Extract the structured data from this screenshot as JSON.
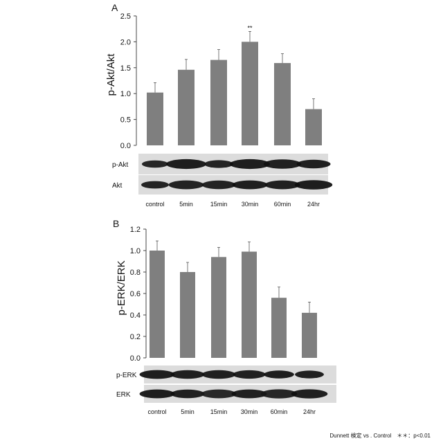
{
  "chart_data": [
    {
      "panel_label": "A",
      "type": "bar",
      "categories": [
        "control",
        "5min",
        "15min",
        "30min",
        "60min",
        "24hr"
      ],
      "values": [
        1.02,
        1.46,
        1.65,
        2.0,
        1.59,
        0.7
      ],
      "errors": [
        0.19,
        0.2,
        0.2,
        0.2,
        0.18,
        0.2
      ],
      "significance": [
        "",
        "",
        "",
        "**",
        "",
        ""
      ],
      "ylabel": "p-Akt/Akt",
      "ylim": [
        0,
        2.5
      ],
      "yticks": [
        0,
        0.5,
        1.0,
        1.5,
        2.0,
        2.5
      ],
      "ytick_labels": [
        "0.0",
        "0.5",
        "1.0",
        "1.5",
        "2.0",
        "2.5"
      ],
      "grid": false,
      "blot_labels": [
        "p-Akt",
        "Akt"
      ]
    },
    {
      "panel_label": "B",
      "type": "bar",
      "categories": [
        "control",
        "5min",
        "15min",
        "30min",
        "60min",
        "24hr"
      ],
      "values": [
        1.0,
        0.8,
        0.94,
        0.99,
        0.56,
        0.42
      ],
      "errors": [
        0.09,
        0.09,
        0.09,
        0.09,
        0.1,
        0.1
      ],
      "significance": [
        "",
        "",
        "",
        "",
        "",
        ""
      ],
      "ylabel": "p-ERK/ERK",
      "ylim": [
        0,
        1.2
      ],
      "yticks": [
        0,
        0.2,
        0.4,
        0.6,
        0.8,
        1.0,
        1.2
      ],
      "ytick_labels": [
        "0.0",
        "0.2",
        "0.4",
        "0.6",
        "0.8",
        "1.0",
        "1.2"
      ],
      "grid": false,
      "blot_labels": [
        "p-ERK",
        "ERK"
      ]
    }
  ],
  "footnote": "Dunnett 検定 vs . Control　＊＊：p<0.01",
  "colors": {
    "bar": "#7f7f7f",
    "axis": "#444444",
    "error_bar": "#555555"
  }
}
